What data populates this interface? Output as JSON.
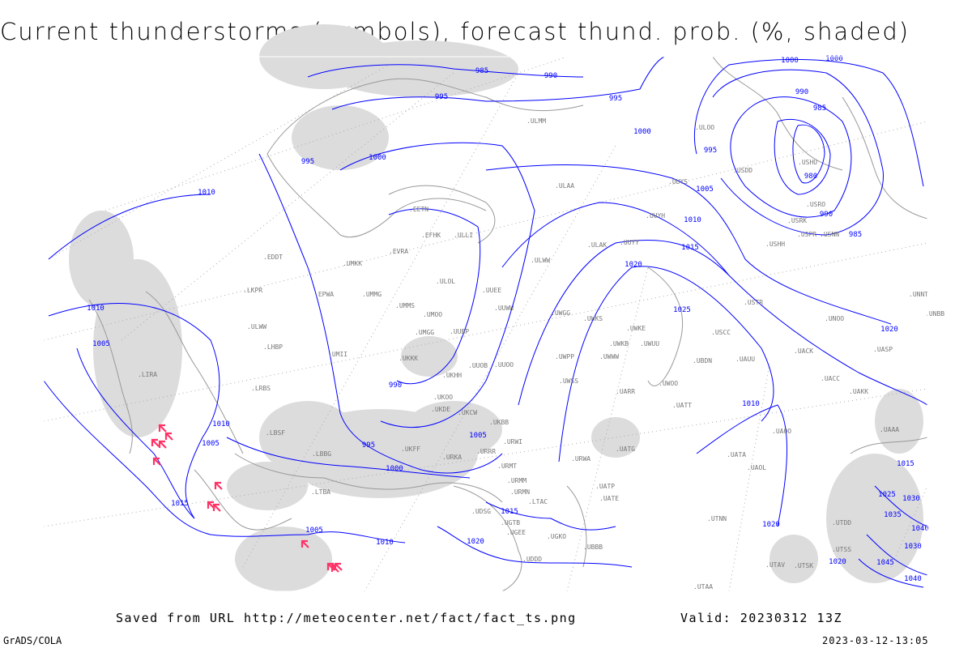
{
  "title": "Current thunderstorms (symbols), forecast thund. prob. (%, shaded)",
  "footer": {
    "saved_from": "Saved from URL http://meteocenter.net/fact/fact_ts.png",
    "valid": "Valid: 20230312 13Z",
    "credit": "GrADS/COLA",
    "timestamp": "2023-03-12-13:05"
  },
  "colors": {
    "isobar": "#0000ff",
    "coastline": "#999999",
    "shading": "#dcdcdc",
    "thunderstorm_symbol": "#ff3366"
  },
  "legend_symbol": "thunderstorm-icon",
  "isobar_labels": [
    "1000",
    "985",
    "990",
    "995",
    "995",
    "1000",
    "995",
    "1000",
    "1000",
    "995",
    "990",
    "985",
    "980",
    "990",
    "985",
    "1005",
    "1010",
    "1015",
    "1020",
    "1025",
    "1010",
    "1010",
    "1005",
    "1010",
    "1005",
    "990",
    "995",
    "1000",
    "1005",
    "1005",
    "1010",
    "1015",
    "1020",
    "1020",
    "1015",
    "1010",
    "1020",
    "1020",
    "1025",
    "1030",
    "1035",
    "1040",
    "1045",
    "1030",
    "1040",
    "1015"
  ],
  "stations": [
    "ULMM",
    "ULOO",
    "USDD",
    "UUYS",
    "ULAA",
    "USHU",
    "USRO",
    "USRK",
    "USNN",
    "USPR",
    "UUYH",
    "ULWW",
    "ULAK",
    "UUYY",
    "USHH",
    "UUEE",
    "UUWW",
    "UWGG",
    "UWKS",
    "UWKE",
    "UWPP",
    "UWSS",
    "UWUU",
    "UWOO",
    "UATT",
    "UARR",
    "UWWW",
    "UWKB",
    "UMKK",
    "UMMS",
    "UMOO",
    "UMGG",
    "UUBP",
    "UKKK",
    "UKHH",
    "UKDE",
    "UKOO",
    "UKCW",
    "UKBB",
    "UKFF",
    "URRR",
    "URKA",
    "URMT",
    "URMM",
    "URMN",
    "URWI",
    "URWA",
    "UATG",
    "UATE",
    "UATP",
    "UBBB",
    "UGEE",
    "UGTB",
    "UDDD",
    "UMII",
    "UUOO",
    "UUOB",
    "ULOL",
    "ULLI",
    "EVRA",
    "EETN",
    "EFHK",
    "UMMG",
    "EPWA",
    "ULWW",
    "LKPR",
    "EDDT",
    "LHBP",
    "LRBS",
    "LBSF",
    "LBBG",
    "LTBA",
    "LIRA",
    "LTAC",
    "UAAA",
    "UACC",
    "UAKK",
    "UAOO",
    "UAOL",
    "UATA",
    "UTDD",
    "UTAA",
    "UTAV",
    "UTSK",
    "UTSS",
    "UTNN",
    "USCC",
    "USTR",
    "UNNT",
    "UNBB",
    "UASP",
    "UACK",
    "UNOO",
    "UAUU",
    "UBDN",
    "UGKO",
    "UDSG"
  ]
}
